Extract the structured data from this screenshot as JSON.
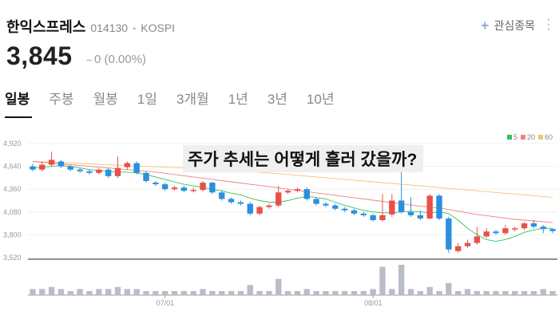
{
  "stock": {
    "name": "한익스프레스",
    "code": "014130",
    "separator": "•",
    "market": "KOSPI"
  },
  "watchlist": {
    "label": "관심종목",
    "icon": "plus-icon"
  },
  "more": {
    "icon": "more-vertical-icon"
  },
  "price": {
    "value": "3,845",
    "change": "0 (0.00%)",
    "change_color": "#999999"
  },
  "tabs": [
    "일봉",
    "주봉",
    "월봉",
    "1일",
    "3개월",
    "1년",
    "3년",
    "10년"
  ],
  "active_tab": "일봉",
  "overlay_text": "주가 추세는 어떻게 흘러 갔을까?",
  "colors": {
    "up": "#e8504a",
    "down": "#2b8fe0",
    "ma5": "#2fc25b",
    "ma20": "#f08080",
    "ma60": "#f4c276",
    "volume": "#b9bdc8"
  },
  "chart_data": {
    "type": "candlestick",
    "y_ticks": [
      "4,920",
      "4,640",
      "4,360",
      "4,080",
      "3,800",
      "3,520"
    ],
    "ylim": [
      3520,
      4920
    ],
    "x_ticks": [
      {
        "label": "07/01",
        "index": 14
      },
      {
        "label": "08/01",
        "index": 36
      }
    ],
    "legend": [
      {
        "name": "5",
        "color": "#2fc25b"
      },
      {
        "name": "20",
        "color": "#f08080"
      },
      {
        "name": "60",
        "color": "#f4c276"
      }
    ],
    "candles": [
      [
        4640,
        4600,
        4670,
        4580
      ],
      [
        4600,
        4660,
        4700,
        4580
      ],
      [
        4660,
        4720,
        4820,
        4640
      ],
      [
        4700,
        4640,
        4720,
        4620
      ],
      [
        4640,
        4600,
        4660,
        4580
      ],
      [
        4600,
        4580,
        4620,
        4560
      ],
      [
        4580,
        4560,
        4600,
        4540
      ],
      [
        4560,
        4600,
        4620,
        4540
      ],
      [
        4600,
        4520,
        4620,
        4500
      ],
      [
        4520,
        4620,
        4760,
        4500
      ],
      [
        4630,
        4680,
        4700,
        4600
      ],
      [
        4680,
        4560,
        4700,
        4540
      ],
      [
        4560,
        4460,
        4580,
        4440
      ],
      [
        4440,
        4420,
        4460,
        4400
      ],
      [
        4420,
        4360,
        4440,
        4340
      ],
      [
        4360,
        4380,
        4400,
        4340
      ],
      [
        4380,
        4340,
        4400,
        4320
      ],
      [
        4340,
        4350,
        4380,
        4320
      ],
      [
        4350,
        4440,
        4460,
        4330
      ],
      [
        4440,
        4320,
        4450,
        4300
      ],
      [
        4320,
        4240,
        4340,
        4220
      ],
      [
        4240,
        4200,
        4260,
        4180
      ],
      [
        4200,
        4180,
        4220,
        4160
      ],
      [
        4180,
        4060,
        4200,
        4040
      ],
      [
        4060,
        4140,
        4160,
        4040
      ],
      [
        4140,
        4160,
        4180,
        4120
      ],
      [
        4160,
        4320,
        4400,
        4140
      ],
      [
        4320,
        4340,
        4360,
        4300
      ],
      [
        4340,
        4360,
        4380,
        4320
      ],
      [
        4360,
        4240,
        4380,
        4220
      ],
      [
        4240,
        4180,
        4260,
        4160
      ],
      [
        4180,
        4160,
        4200,
        4140
      ],
      [
        4160,
        4120,
        4180,
        4100
      ],
      [
        4120,
        4100,
        4140,
        4080
      ],
      [
        4100,
        4060,
        4120,
        4040
      ],
      [
        4060,
        4040,
        4080,
        4020
      ],
      [
        4040,
        3980,
        4060,
        3960
      ],
      [
        3980,
        4040,
        4300,
        3960
      ],
      [
        4050,
        4220,
        4300,
        4020
      ],
      [
        4220,
        4080,
        4660,
        4060
      ],
      [
        4080,
        4040,
        4260,
        4020
      ],
      [
        4040,
        4000,
        4100,
        3980
      ],
      [
        4000,
        4280,
        4300,
        3990
      ],
      [
        4280,
        4000,
        4300,
        3980
      ],
      [
        4000,
        3620,
        4020,
        3580
      ],
      [
        3600,
        3660,
        3700,
        3580
      ],
      [
        3660,
        3700,
        3740,
        3640
      ],
      [
        3700,
        3780,
        3900,
        3680
      ],
      [
        3780,
        3840,
        3880,
        3760
      ],
      [
        3840,
        3820,
        3860,
        3800
      ],
      [
        3820,
        3880,
        3920,
        3800
      ],
      [
        3880,
        3880,
        3900,
        3840
      ],
      [
        3880,
        3940,
        3960,
        3860
      ],
      [
        3940,
        3900,
        3980,
        3880
      ],
      [
        3900,
        3870,
        3920,
        3820
      ],
      [
        3870,
        3845,
        3880,
        3820
      ]
    ],
    "ma5": [
      4620,
      4630,
      4640,
      4650,
      4640,
      4620,
      4600,
      4590,
      4580,
      4570,
      4570,
      4560,
      4540,
      4510,
      4480,
      4450,
      4420,
      4400,
      4380,
      4360,
      4340,
      4310,
      4290,
      4250,
      4220,
      4200,
      4200,
      4220,
      4250,
      4270,
      4260,
      4240,
      4200,
      4160,
      4130,
      4100,
      4080,
      4070,
      4070,
      4080,
      4090,
      4080,
      4070,
      4080,
      4060,
      3980,
      3880,
      3800,
      3740,
      3720,
      3740,
      3780,
      3830,
      3860,
      3880,
      3880
    ],
    "ma20": [
      4700,
      4690,
      4680,
      4670,
      4660,
      4650,
      4640,
      4630,
      4620,
      4610,
      4600,
      4590,
      4580,
      4570,
      4555,
      4540,
      4525,
      4510,
      4495,
      4480,
      4465,
      4450,
      4435,
      4420,
      4405,
      4390,
      4375,
      4360,
      4345,
      4330,
      4315,
      4300,
      4285,
      4270,
      4255,
      4240,
      4225,
      4210,
      4195,
      4180,
      4165,
      4150,
      4140,
      4130,
      4110,
      4090,
      4070,
      4050,
      4035,
      4020,
      4005,
      3990,
      3980,
      3970,
      3960,
      3950
    ],
    "ma60": [
      4700,
      4695,
      4690,
      4685,
      4680,
      4675,
      4670,
      4665,
      4660,
      4655,
      4650,
      4645,
      4640,
      4635,
      4630,
      4625,
      4620,
      4615,
      4610,
      4605,
      4600,
      4592,
      4584,
      4576,
      4568,
      4560,
      4550,
      4540,
      4530,
      4520,
      4510,
      4500,
      4490,
      4480,
      4470,
      4460,
      4450,
      4440,
      4430,
      4420,
      4410,
      4400,
      4390,
      4380,
      4370,
      4360,
      4350,
      4340,
      4330,
      4320,
      4310,
      4300,
      4290,
      4280,
      4270,
      4260
    ],
    "volume": [
      3,
      3,
      4,
      3,
      2,
      3,
      2,
      3,
      3,
      4,
      3,
      3,
      2,
      2,
      2,
      2,
      2,
      2,
      3,
      2,
      2,
      2,
      2,
      5,
      2,
      2,
      8,
      2,
      2,
      3,
      2,
      2,
      2,
      2,
      2,
      2,
      3,
      14,
      3,
      15,
      3,
      2,
      4,
      2,
      6,
      2,
      3,
      2,
      2,
      2,
      2,
      2,
      2,
      2,
      3,
      2
    ]
  }
}
